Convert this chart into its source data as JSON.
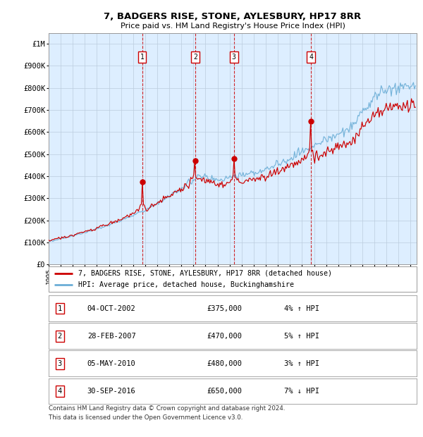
{
  "title": "7, BADGERS RISE, STONE, AYLESBURY, HP17 8RR",
  "subtitle": "Price paid vs. HM Land Registry's House Price Index (HPI)",
  "ylabel_ticks": [
    "£0",
    "£100K",
    "£200K",
    "£300K",
    "£400K",
    "£500K",
    "£600K",
    "£700K",
    "£800K",
    "£900K",
    "£1M"
  ],
  "ytick_values": [
    0,
    100000,
    200000,
    300000,
    400000,
    500000,
    600000,
    700000,
    800000,
    900000,
    1000000
  ],
  "ylim": [
    0,
    1050000
  ],
  "xlim_start": 1995.0,
  "xlim_end": 2025.5,
  "hpi_color": "#6baed6",
  "price_color": "#cc0000",
  "background_plot": "#ddeeff",
  "transactions": [
    {
      "num": 1,
      "year": 2002.75,
      "price": 375000,
      "date": "04-OCT-2002",
      "label": "£375,000",
      "hpi_rel": "4% ↑ HPI"
    },
    {
      "num": 2,
      "year": 2007.15,
      "price": 470000,
      "date": "28-FEB-2007",
      "label": "£470,000",
      "hpi_rel": "5% ↑ HPI"
    },
    {
      "num": 3,
      "year": 2010.35,
      "price": 480000,
      "date": "05-MAY-2010",
      "label": "£480,000",
      "hpi_rel": "3% ↑ HPI"
    },
    {
      "num": 4,
      "year": 2016.75,
      "price": 650000,
      "date": "30-SEP-2016",
      "label": "£650,000",
      "hpi_rel": "7% ↓ HPI"
    }
  ],
  "legend_property_label": "7, BADGERS RISE, STONE, AYLESBURY, HP17 8RR (detached house)",
  "legend_hpi_label": "HPI: Average price, detached house, Buckinghamshire",
  "footer1": "Contains HM Land Registry data © Crown copyright and database right 2024.",
  "footer2": "This data is licensed under the Open Government Licence v3.0."
}
